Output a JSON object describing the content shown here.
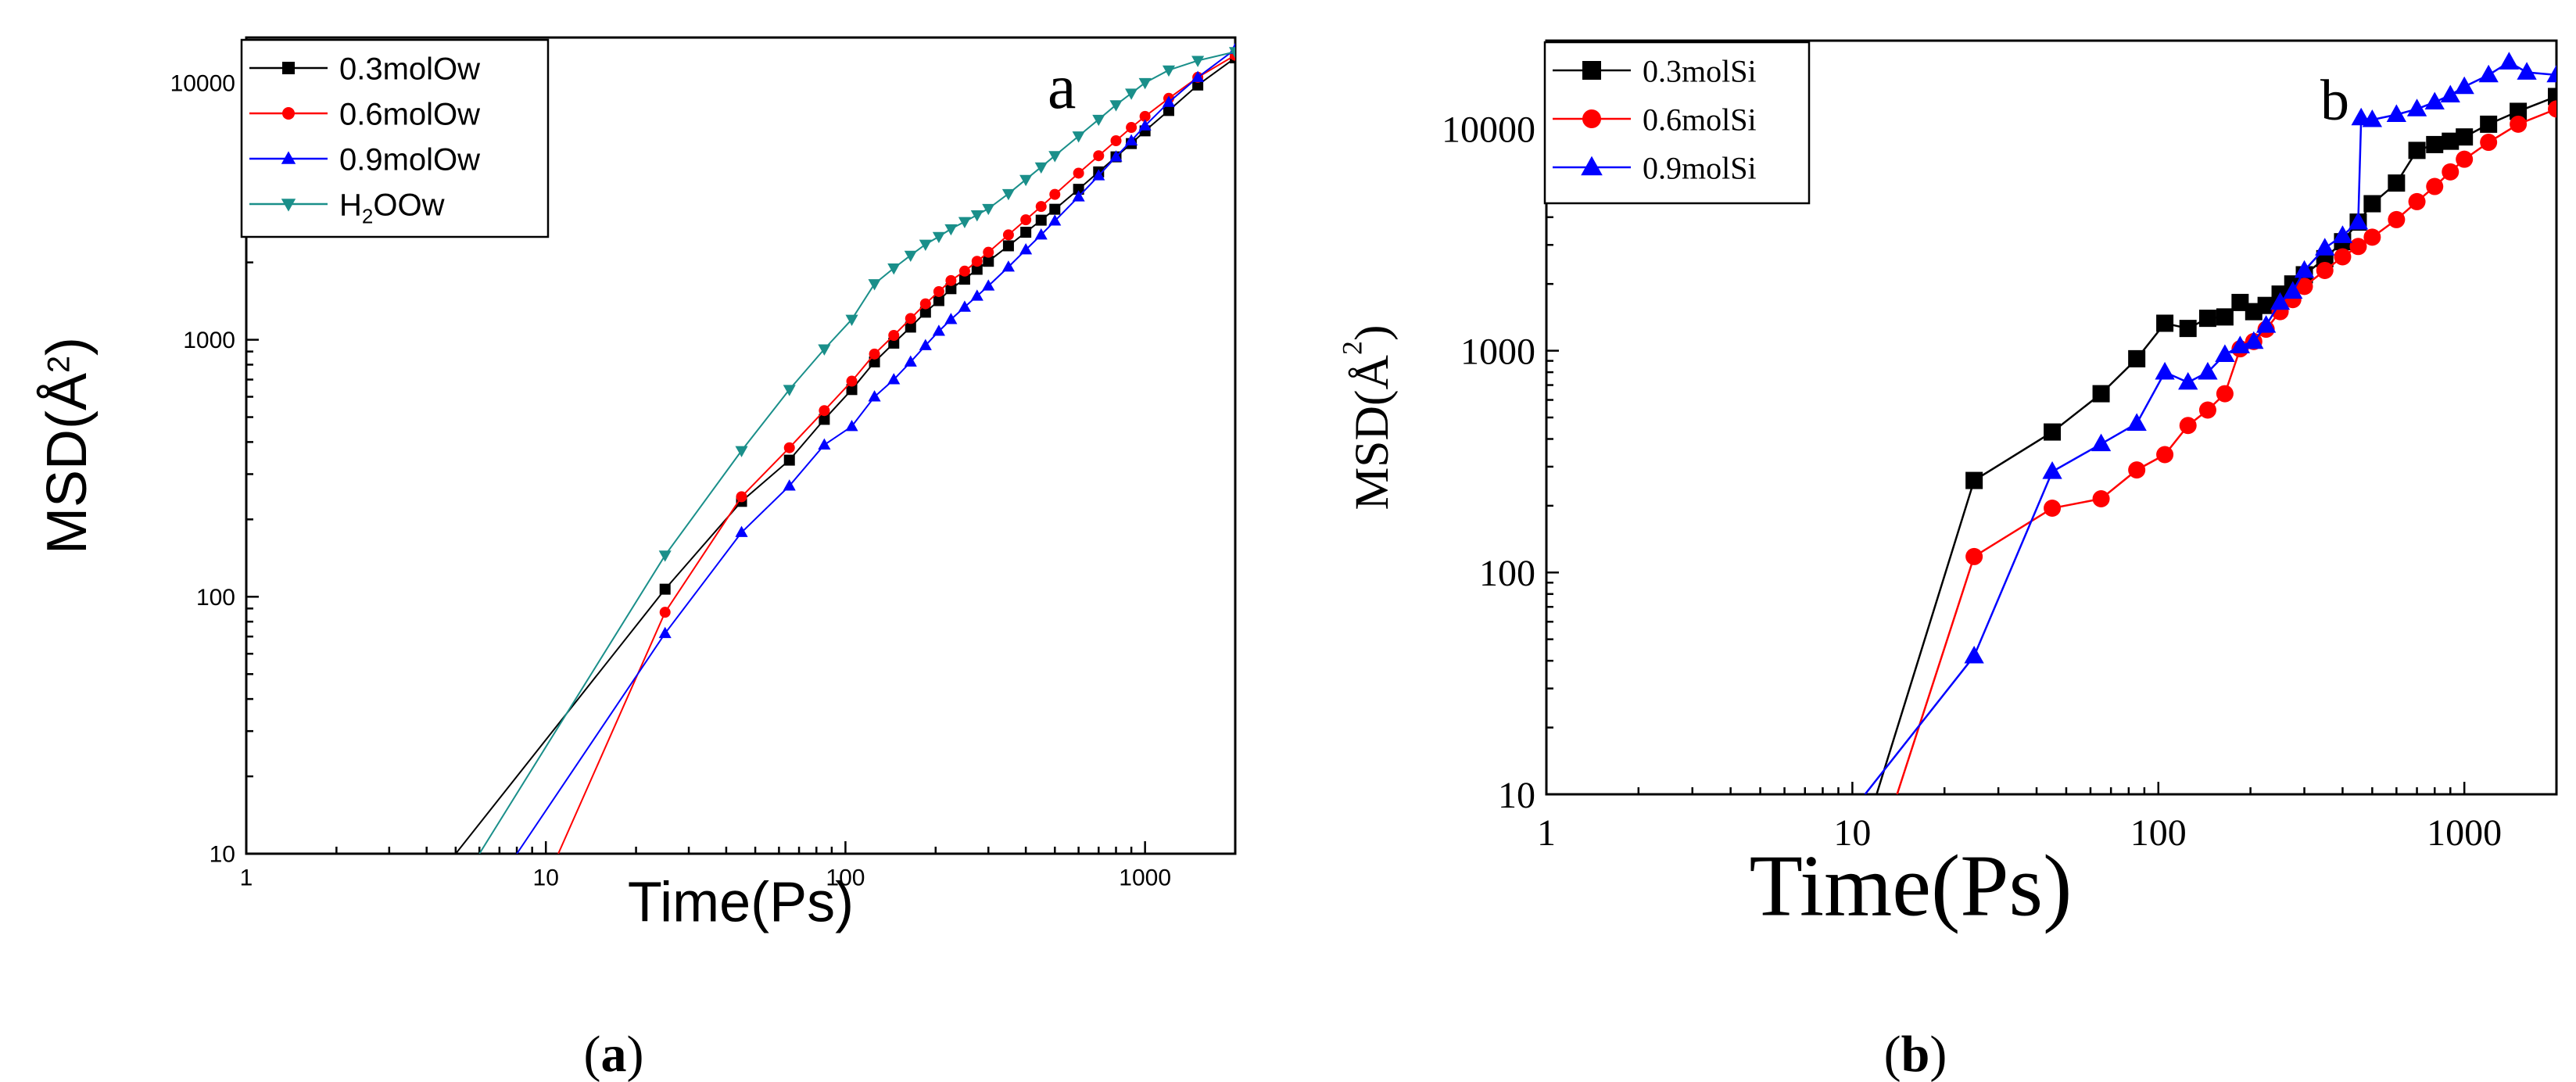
{
  "figure_captions": {
    "a": {
      "open": "(",
      "letter": "a",
      "close": ")"
    },
    "b": {
      "open": "(",
      "letter": "b",
      "close": ")"
    }
  },
  "chart_data": [
    {
      "id": "a",
      "type": "line",
      "scale": "log-log",
      "panel_label": "a",
      "xlabel": "Time(Ps)",
      "ylabel": {
        "prefix": "MSD(",
        "unit": "Å",
        "power": "2",
        "suffix": ")"
      },
      "xlim": [
        1,
        2000
      ],
      "ylim": [
        10,
        15000
      ],
      "x_ticks": [
        1,
        10,
        100,
        1000
      ],
      "x_tick_labels": [
        "1",
        "10",
        "100",
        "1000"
      ],
      "y_ticks": [
        10,
        100,
        1000,
        10000
      ],
      "y_tick_labels": [
        "10",
        "100",
        "1000",
        "10000"
      ],
      "legend_position": "top-left",
      "series": [
        {
          "name": "0.3molOw",
          "color": "#000000",
          "marker": "square",
          "x": [
            5,
            25,
            45,
            65,
            85,
            105,
            125,
            145,
            165,
            185,
            205,
            225,
            250,
            275,
            300,
            350,
            400,
            450,
            500,
            600,
            700,
            800,
            900,
            1000,
            1200,
            1500,
            2000
          ],
          "y": [
            10,
            107,
            235,
            340,
            490,
            640,
            820,
            970,
            1120,
            1280,
            1420,
            1580,
            1720,
            1880,
            2020,
            2320,
            2620,
            2920,
            3220,
            3850,
            4500,
            5150,
            5800,
            6500,
            7800,
            9800,
            12500
          ]
        },
        {
          "name": "0.6molOw",
          "color": "#ff0000",
          "marker": "circle",
          "x": [
            11,
            25,
            45,
            65,
            85,
            105,
            125,
            145,
            165,
            185,
            205,
            225,
            250,
            275,
            300,
            350,
            400,
            450,
            500,
            600,
            700,
            800,
            900,
            1000,
            1200,
            1500,
            2000
          ],
          "y": [
            10,
            87,
            245,
            380,
            530,
            690,
            880,
            1040,
            1210,
            1380,
            1540,
            1700,
            1850,
            2020,
            2190,
            2560,
            2930,
            3300,
            3680,
            4450,
            5200,
            5950,
            6700,
            7400,
            8700,
            10500,
            12800
          ]
        },
        {
          "name": "0.9molOw",
          "color": "#0000ff",
          "marker": "triangle-up",
          "x": [
            8,
            25,
            45,
            65,
            85,
            105,
            125,
            145,
            165,
            185,
            205,
            225,
            250,
            275,
            300,
            350,
            400,
            450,
            500,
            600,
            700,
            800,
            900,
            1000,
            1200,
            1500,
            2000
          ],
          "y": [
            10,
            72,
            178,
            270,
            390,
            460,
            600,
            700,
            820,
            950,
            1080,
            1200,
            1340,
            1480,
            1620,
            1920,
            2240,
            2560,
            2900,
            3600,
            4350,
            5150,
            5950,
            6800,
            8400,
            10500,
            13500
          ]
        },
        {
          "name": "H2OOw",
          "name_main": "H",
          "name_sub": "2",
          "name_tail": "OOw",
          "color": "#1a8f8a",
          "marker": "triangle-down",
          "x": [
            6,
            25,
            45,
            65,
            85,
            105,
            125,
            145,
            165,
            185,
            205,
            225,
            250,
            275,
            300,
            350,
            400,
            450,
            500,
            600,
            700,
            800,
            900,
            1000,
            1200,
            1500,
            2000
          ],
          "y": [
            10,
            145,
            370,
            640,
            920,
            1200,
            1650,
            1900,
            2130,
            2350,
            2520,
            2700,
            2880,
            3060,
            3240,
            3700,
            4200,
            4700,
            5200,
            6200,
            7200,
            8200,
            9100,
            10000,
            11200,
            12200,
            13200
          ]
        }
      ]
    },
    {
      "id": "b",
      "type": "line",
      "scale": "log-log",
      "panel_label": "b",
      "xlabel": "Time(Ps)",
      "ylabel": {
        "prefix": "MSD(",
        "unit": "Å",
        "power": "2",
        "suffix": ")"
      },
      "xlim": [
        1,
        2000
      ],
      "ylim": [
        10,
        25000
      ],
      "x_ticks": [
        1,
        10,
        100,
        1000
      ],
      "x_tick_labels": [
        "1",
        "10",
        "100",
        "1000"
      ],
      "y_ticks": [
        10,
        100,
        1000,
        10000
      ],
      "y_tick_labels": [
        "10",
        "100",
        "1000",
        "10000"
      ],
      "legend_position": "top-left",
      "series": [
        {
          "name": "0.3molSi",
          "color": "#000000",
          "marker": "square",
          "x": [
            12,
            25,
            45,
            65,
            85,
            105,
            125,
            145,
            165,
            185,
            205,
            225,
            250,
            275,
            300,
            350,
            400,
            450,
            500,
            600,
            700,
            800,
            900,
            1000,
            1200,
            1500,
            2000
          ],
          "y": [
            10,
            260,
            430,
            640,
            920,
            1330,
            1260,
            1400,
            1420,
            1650,
            1500,
            1600,
            1800,
            2000,
            2200,
            2600,
            3100,
            3800,
            4600,
            5700,
            8000,
            8500,
            8800,
            9200,
            10500,
            12000,
            14000
          ]
        },
        {
          "name": "0.6molSi",
          "color": "#ff0000",
          "marker": "circle",
          "x": [
            14,
            25,
            45,
            65,
            85,
            105,
            125,
            145,
            165,
            185,
            205,
            225,
            250,
            275,
            300,
            350,
            400,
            450,
            500,
            600,
            700,
            800,
            900,
            1000,
            1200,
            1500,
            2000
          ],
          "y": [
            10,
            118,
            195,
            215,
            290,
            340,
            460,
            540,
            640,
            1020,
            1100,
            1250,
            1500,
            1700,
            1950,
            2300,
            2650,
            2950,
            3250,
            3900,
            4700,
            5500,
            6400,
            7300,
            8700,
            10500,
            12300
          ]
        },
        {
          "name": "0.9molSi",
          "color": "#0000ff",
          "marker": "triangle-up",
          "x": [
            11,
            25,
            45,
            65,
            85,
            105,
            125,
            145,
            165,
            185,
            205,
            225,
            250,
            275,
            300,
            350,
            400,
            450,
            460,
            500,
            600,
            700,
            800,
            900,
            1000,
            1200,
            1400,
            1600,
            2000
          ],
          "y": [
            10,
            42,
            285,
            380,
            470,
            800,
            720,
            800,
            960,
            1050,
            1100,
            1300,
            1650,
            1850,
            2300,
            2900,
            3300,
            3800,
            11200,
            11000,
            11600,
            12300,
            13200,
            14200,
            15500,
            17500,
            20000,
            18000,
            17500
          ]
        }
      ]
    }
  ]
}
